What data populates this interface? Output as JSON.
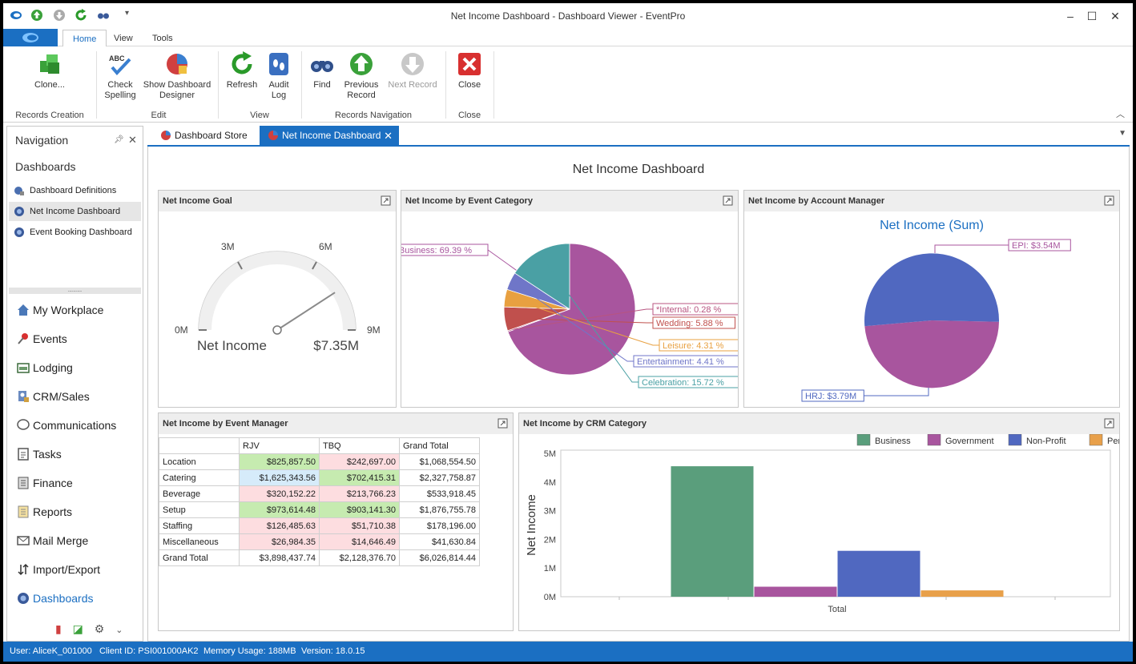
{
  "window": {
    "title": "Net Income Dashboard - Dashboard Viewer - EventPro"
  },
  "ribbon_tabs": [
    {
      "label": "Home"
    },
    {
      "label": "View"
    },
    {
      "label": "Tools"
    }
  ],
  "ribbon": {
    "clone": "Clone...",
    "check_spelling_1": "Check",
    "check_spelling_2": "Spelling",
    "show_designer_1": "Show Dashboard",
    "show_designer_2": "Designer",
    "refresh": "Refresh",
    "audit_log_1": "Audit",
    "audit_log_2": "Log",
    "find": "Find",
    "previous_record_1": "Previous",
    "previous_record_2": "Record",
    "next_record": "Next Record",
    "close": "Close",
    "groups": {
      "records_creation": "Records Creation",
      "edit": "Edit",
      "view": "View",
      "records_navigation": "Records Navigation",
      "close": "Close"
    }
  },
  "navigation": {
    "title": "Navigation",
    "section": "Dashboards",
    "items": [
      {
        "label": "Dashboard Definitions"
      },
      {
        "label": "Net Income Dashboard"
      },
      {
        "label": "Event Booking Dashboard"
      }
    ],
    "modules": [
      {
        "label": "My Workplace"
      },
      {
        "label": "Events"
      },
      {
        "label": "Lodging"
      },
      {
        "label": "CRM/Sales"
      },
      {
        "label": "Communications"
      },
      {
        "label": "Tasks"
      },
      {
        "label": "Finance"
      },
      {
        "label": "Reports"
      },
      {
        "label": "Mail Merge"
      },
      {
        "label": "Import/Export"
      },
      {
        "label": "Dashboards"
      }
    ]
  },
  "doc_tabs": [
    {
      "label": "Dashboard Store"
    },
    {
      "label": "Net Income Dashboard"
    }
  ],
  "dashboard": {
    "title": "Net Income Dashboard",
    "gauge": {
      "title": "Net Income Goal",
      "ticks": [
        "0M",
        "3M",
        "6M",
        "9M"
      ],
      "label": "Net Income",
      "value_text": "$7.35M",
      "value": 7.35,
      "max": 9
    },
    "event_category": {
      "title": "Net Income by Event Category"
    },
    "account_manager": {
      "title": "Net Income by Account Manager",
      "chart_title": "Net Income (Sum)"
    },
    "event_manager": {
      "title": "Net Income by Event Manager",
      "columns": [
        "",
        "RJV",
        "TBQ",
        "Grand Total"
      ],
      "rows": [
        {
          "label": "Location",
          "rjv": "$825,857.50",
          "tbq": "$242,697.00",
          "total": "$1,068,554.50"
        },
        {
          "label": "Catering",
          "rjv": "$1,625,343.56",
          "tbq": "$702,415.31",
          "total": "$2,327,758.87"
        },
        {
          "label": "Beverage",
          "rjv": "$320,152.22",
          "tbq": "$213,766.23",
          "total": "$533,918.45"
        },
        {
          "label": "Setup",
          "rjv": "$973,614.48",
          "tbq": "$903,141.30",
          "total": "$1,876,755.78"
        },
        {
          "label": "Staffing",
          "rjv": "$126,485.63",
          "tbq": "$51,710.38",
          "total": "$178,196.00"
        },
        {
          "label": "Miscellaneous",
          "rjv": "$26,984.35",
          "tbq": "$14,646.49",
          "total": "$41,630.84"
        },
        {
          "label": "Grand Total",
          "rjv": "$3,898,437.74",
          "tbq": "$2,128,376.70",
          "total": "$6,026,814.44"
        }
      ]
    },
    "crm_category": {
      "title": "Net Income by CRM Category"
    }
  },
  "colors": {
    "accent": "#1b6fc2",
    "green_cell": "#c6ebb0",
    "red_cell": "#fddde0",
    "blue_cell": "#d6ebfa"
  },
  "status": {
    "user": "User: AliceK_001000",
    "client": "Client ID: PSI001000AK2",
    "memory": "Memory Usage: 188MB",
    "version": "Version: 18.0.15"
  },
  "chart_data": [
    {
      "type": "pie",
      "labels": [
        "Business",
        "*Internal",
        "Wedding",
        "Leisure",
        "Entertainment",
        "Celebration"
      ],
      "values": [
        69.39,
        0.28,
        5.88,
        4.31,
        4.41,
        15.72
      ],
      "data_labels": [
        "Business: 69.39 %",
        "*Internal: 0.28 %",
        "Wedding: 5.88 %",
        "Leisure: 4.31 %",
        "Entertainment: 4.41 %",
        "Celebration: 15.72 %"
      ],
      "colors": [
        "#a8559e",
        "#b85480",
        "#c0504d",
        "#e8a040",
        "#6f76c8",
        "#4aa0a4"
      ]
    },
    {
      "type": "pie",
      "title": "Net Income (Sum)",
      "labels": [
        "EPI",
        "HRJ"
      ],
      "values": [
        3.54,
        3.79
      ],
      "data_labels": [
        "EPI: $3.54M",
        "HRJ: $3.79M"
      ],
      "colors": [
        "#a8559e",
        "#5068c0"
      ]
    },
    {
      "type": "bar",
      "categories": [
        "Total"
      ],
      "series": [
        {
          "name": "Business",
          "values": [
            4.55
          ],
          "color": "#5a9e7c"
        },
        {
          "name": "Government",
          "values": [
            0.35
          ],
          "color": "#a8559e"
        },
        {
          "name": "Non-Profit",
          "values": [
            1.6
          ],
          "color": "#5068c0"
        },
        {
          "name": "Personal",
          "values": [
            0.22
          ],
          "color": "#e8a04a"
        }
      ],
      "ylabel": "Net Income",
      "yticks": [
        "0M",
        "1M",
        "2M",
        "3M",
        "4M",
        "5M"
      ],
      "ylim": [
        0,
        5
      ],
      "legend": "top-right"
    }
  ]
}
